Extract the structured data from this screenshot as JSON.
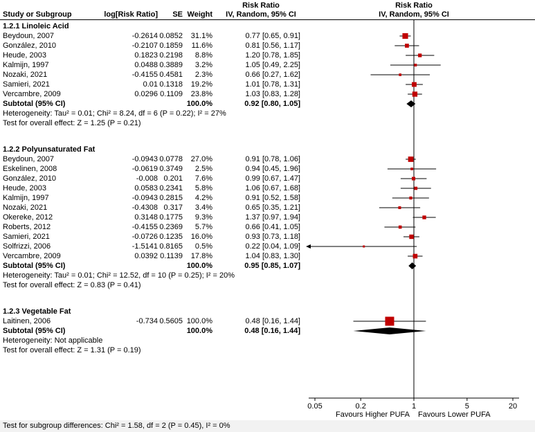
{
  "header": {
    "col_study": "Study or Subgroup",
    "col_log_rr": "log[Risk Ratio]",
    "col_se": "SE",
    "col_weight": "Weight",
    "ci_col_title": "Risk Ratio",
    "ci_col_subtitle": "IV, Random, 95% CI",
    "plot_col_title": "Risk Ratio",
    "plot_col_subtitle": "IV, Random, 95% CI"
  },
  "axis": {
    "scale": "log10",
    "min": 0.05,
    "max": 20,
    "ticks": [
      "0.05",
      "0.2",
      "1",
      "5",
      "20"
    ]
  },
  "footer": {
    "favours_left": "Favours Higher PUFA",
    "favours_right": "Favours Lower PUFA",
    "subgroup_test": "Test for subgroup differences: Chi² = 1.58, df = 2 (P = 0.45), I² = 0%"
  },
  "colors": {
    "marker": "#c00000",
    "diamond": "#000000",
    "axis": "#000000"
  },
  "chart_data": {
    "type": "forest",
    "effect_measure": "Risk Ratio",
    "model": "IV, Random, 95% CI",
    "x_scale": "log10",
    "x_range": [
      0.05,
      20
    ],
    "groups": [
      {
        "title": "1.2.1 Linoleic Acid",
        "studies": [
          {
            "study": "Beydoun, 2007",
            "log_rr": "-0.2614",
            "se": "0.0852",
            "weight": "31.1%",
            "ci_text": "0.77 [0.65, 0.91]",
            "est": 0.77,
            "lo": 0.65,
            "hi": 0.91,
            "w": 31.1
          },
          {
            "study": "González, 2010",
            "log_rr": "-0.2107",
            "se": "0.1859",
            "weight": "11.6%",
            "ci_text": "0.81 [0.56, 1.17]",
            "est": 0.81,
            "lo": 0.56,
            "hi": 1.17,
            "w": 11.6
          },
          {
            "study": "Heude, 2003",
            "log_rr": "0.1823",
            "se": "0.2198",
            "weight": "8.8%",
            "ci_text": "1.20 [0.78, 1.85]",
            "est": 1.2,
            "lo": 0.78,
            "hi": 1.85,
            "w": 8.8
          },
          {
            "study": "Kalmijn, 1997",
            "log_rr": "0.0488",
            "se": "0.3889",
            "weight": "3.2%",
            "ci_text": "1.05 [0.49, 2.25]",
            "est": 1.05,
            "lo": 0.49,
            "hi": 2.25,
            "w": 3.2
          },
          {
            "study": "Nozaki, 2021",
            "log_rr": "-0.4155",
            "se": "0.4581",
            "weight": "2.3%",
            "ci_text": "0.66 [0.27, 1.62]",
            "est": 0.66,
            "lo": 0.27,
            "hi": 1.62,
            "w": 2.3
          },
          {
            "study": "Samieri, 2021",
            "log_rr": "0.01",
            "se": "0.1318",
            "weight": "19.2%",
            "ci_text": "1.01 [0.78, 1.31]",
            "est": 1.01,
            "lo": 0.78,
            "hi": 1.31,
            "w": 19.2
          },
          {
            "study": "Vercambre, 2009",
            "log_rr": "0.0296",
            "se": "0.1109",
            "weight": "23.8%",
            "ci_text": "1.03 [0.83, 1.28]",
            "est": 1.03,
            "lo": 0.83,
            "hi": 1.28,
            "w": 23.8
          }
        ],
        "subtotal": {
          "label": "Subtotal (95% CI)",
          "weight": "100.0%",
          "ci_text": "0.92 [0.80, 1.05]",
          "est": 0.92,
          "lo": 0.8,
          "hi": 1.05
        },
        "heterogeneity": "Heterogeneity: Tau² = 0.01; Chi² = 8.24, df = 6 (P = 0.22); I² = 27%",
        "overall": "Test for overall effect: Z = 1.25 (P = 0.21)"
      },
      {
        "title": "1.2.2 Polyunsaturated Fat",
        "studies": [
          {
            "study": "Beydoun, 2007",
            "log_rr": "-0.0943",
            "se": "0.0778",
            "weight": "27.0%",
            "ci_text": "0.91 [0.78, 1.06]",
            "est": 0.91,
            "lo": 0.78,
            "hi": 1.06,
            "w": 27.0
          },
          {
            "study": "Eskelinen, 2008",
            "log_rr": "-0.0619",
            "se": "0.3749",
            "weight": "2.5%",
            "ci_text": "0.94 [0.45, 1.96]",
            "est": 0.94,
            "lo": 0.45,
            "hi": 1.96,
            "w": 2.5
          },
          {
            "study": "González, 2010",
            "log_rr": "-0.008",
            "se": "0.201",
            "weight": "7.6%",
            "ci_text": "0.99 [0.67, 1.47]",
            "est": 0.99,
            "lo": 0.67,
            "hi": 1.47,
            "w": 7.6
          },
          {
            "study": "Heude, 2003",
            "log_rr": "0.0583",
            "se": "0.2341",
            "weight": "5.8%",
            "ci_text": "1.06 [0.67, 1.68]",
            "est": 1.06,
            "lo": 0.67,
            "hi": 1.68,
            "w": 5.8
          },
          {
            "study": "Kalmijn, 1997",
            "log_rr": "-0.0943",
            "se": "0.2815",
            "weight": "4.2%",
            "ci_text": "0.91 [0.52, 1.58]",
            "est": 0.91,
            "lo": 0.52,
            "hi": 1.58,
            "w": 4.2
          },
          {
            "study": "Nozaki, 2021",
            "log_rr": "-0.4308",
            "se": "0.317",
            "weight": "3.4%",
            "ci_text": "0.65 [0.35, 1.21]",
            "est": 0.65,
            "lo": 0.35,
            "hi": 1.21,
            "w": 3.4
          },
          {
            "study": "Okereke, 2012",
            "log_rr": "0.3148",
            "se": "0.1775",
            "weight": "9.3%",
            "ci_text": "1.37 [0.97, 1.94]",
            "est": 1.37,
            "lo": 0.97,
            "hi": 1.94,
            "w": 9.3
          },
          {
            "study": "Roberts, 2012",
            "log_rr": "-0.4155",
            "se": "0.2369",
            "weight": "5.7%",
            "ci_text": "0.66 [0.41, 1.05]",
            "est": 0.66,
            "lo": 0.41,
            "hi": 1.05,
            "w": 5.7
          },
          {
            "study": "Samieri, 2021",
            "log_rr": "-0.0726",
            "se": "0.1235",
            "weight": "16.0%",
            "ci_text": "0.93 [0.73, 1.18]",
            "est": 0.93,
            "lo": 0.73,
            "hi": 1.18,
            "w": 16.0
          },
          {
            "study": "Solfrizzi, 2006",
            "log_rr": "-1.5141",
            "se": "0.8165",
            "weight": "0.5%",
            "ci_text": "0.22 [0.04, 1.09]",
            "est": 0.22,
            "lo": 0.04,
            "hi": 1.09,
            "w": 0.5
          },
          {
            "study": "Vercambre, 2009",
            "log_rr": "0.0392",
            "se": "0.1139",
            "weight": "17.8%",
            "ci_text": "1.04 [0.83, 1.30]",
            "est": 1.04,
            "lo": 0.83,
            "hi": 1.3,
            "w": 17.8
          }
        ],
        "subtotal": {
          "label": "Subtotal (95% CI)",
          "weight": "100.0%",
          "ci_text": "0.95 [0.85, 1.07]",
          "est": 0.95,
          "lo": 0.85,
          "hi": 1.07
        },
        "heterogeneity": "Heterogeneity: Tau² = 0.01; Chi² = 12.52, df = 10 (P = 0.25); I² = 20%",
        "overall": "Test for overall effect: Z = 0.83 (P = 0.41)"
      },
      {
        "title": "1.2.3 Vegetable Fat",
        "studies": [
          {
            "study": "Laitinen, 2006",
            "log_rr": "-0.734",
            "se": "0.5605",
            "weight": "100.0%",
            "ci_text": "0.48 [0.16, 1.44]",
            "est": 0.48,
            "lo": 0.16,
            "hi": 1.44,
            "w": 100.0
          }
        ],
        "subtotal": {
          "label": "Subtotal (95% CI)",
          "weight": "100.0%",
          "ci_text": "0.48 [0.16, 1.44]",
          "est": 0.48,
          "lo": 0.16,
          "hi": 1.44
        },
        "heterogeneity": "Heterogeneity: Not applicable",
        "overall": "Test for overall effect: Z = 1.31 (P = 0.19)"
      }
    ]
  }
}
